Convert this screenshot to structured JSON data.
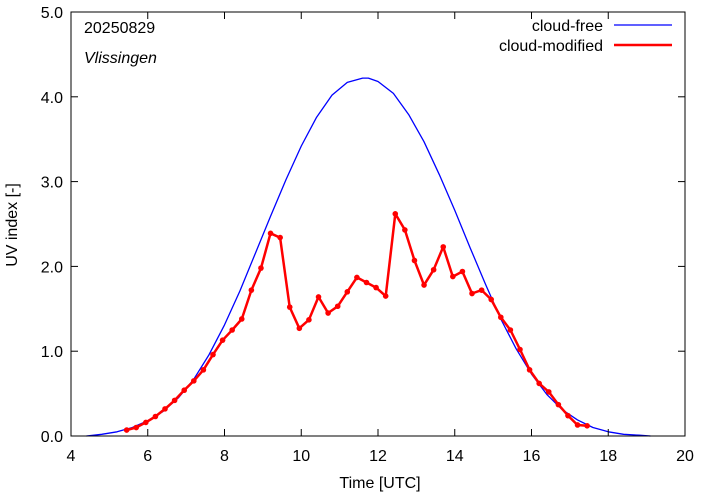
{
  "chart_data": {
    "type": "line",
    "annotations": {
      "date": "20250829",
      "station": "Vlissingen"
    },
    "xlabel": "Time  [UTC]",
    "ylabel": "UV index  [-]",
    "xlim": [
      4,
      20
    ],
    "ylim": [
      0,
      5
    ],
    "xticks": [
      "4",
      "6",
      "8",
      "10",
      "12",
      "14",
      "16",
      "18",
      "20"
    ],
    "yticks": [
      "0.0",
      "1.0",
      "2.0",
      "3.0",
      "4.0",
      "5.0"
    ],
    "grid": false,
    "legend_position": "top-right",
    "series": [
      {
        "name": "cloud-free",
        "color": "#0000ff",
        "marker": "none",
        "x": [
          4.4,
          4.8,
          5.2,
          5.6,
          6.0,
          6.4,
          6.8,
          7.2,
          7.6,
          8.0,
          8.4,
          8.8,
          9.2,
          9.6,
          10.0,
          10.4,
          10.8,
          11.2,
          11.6,
          11.75,
          12.0,
          12.4,
          12.8,
          13.2,
          13.6,
          14.0,
          14.4,
          14.8,
          15.2,
          15.6,
          16.0,
          16.4,
          16.8,
          17.2,
          17.6,
          18.0,
          18.4,
          18.8,
          19.1
        ],
        "y": [
          0.0,
          0.02,
          0.05,
          0.1,
          0.18,
          0.29,
          0.45,
          0.67,
          0.96,
          1.31,
          1.71,
          2.15,
          2.59,
          3.02,
          3.42,
          3.76,
          4.02,
          4.17,
          4.22,
          4.22,
          4.18,
          4.04,
          3.79,
          3.47,
          3.08,
          2.66,
          2.22,
          1.79,
          1.38,
          1.03,
          0.73,
          0.49,
          0.31,
          0.19,
          0.1,
          0.05,
          0.02,
          0.01,
          0.0
        ]
      },
      {
        "name": "cloud-modified",
        "color": "#ff0000",
        "marker": "circle",
        "x": [
          5.45,
          5.7,
          5.95,
          6.2,
          6.45,
          6.7,
          6.95,
          7.2,
          7.45,
          7.7,
          7.95,
          8.2,
          8.45,
          8.7,
          8.95,
          9.2,
          9.45,
          9.7,
          9.95,
          10.2,
          10.45,
          10.7,
          10.95,
          11.2,
          11.45,
          11.7,
          11.95,
          12.2,
          12.45,
          12.7,
          12.95,
          13.2,
          13.45,
          13.7,
          13.95,
          14.2,
          14.45,
          14.7,
          14.95,
          15.2,
          15.45,
          15.7,
          15.95,
          16.2,
          16.45,
          16.7,
          16.95,
          17.2,
          17.45
        ],
        "y": [
          0.07,
          0.1,
          0.16,
          0.23,
          0.32,
          0.42,
          0.54,
          0.65,
          0.78,
          0.96,
          1.13,
          1.25,
          1.38,
          1.72,
          1.98,
          2.39,
          2.34,
          1.52,
          1.27,
          1.37,
          1.64,
          1.45,
          1.53,
          1.7,
          1.87,
          1.81,
          1.75,
          1.65,
          2.62,
          2.43,
          2.07,
          1.78,
          1.96,
          2.23,
          1.88,
          1.94,
          1.68,
          1.72,
          1.61,
          1.4,
          1.25,
          1.02,
          0.78,
          0.62,
          0.52,
          0.37,
          0.24,
          0.13,
          0.12
        ]
      }
    ]
  }
}
